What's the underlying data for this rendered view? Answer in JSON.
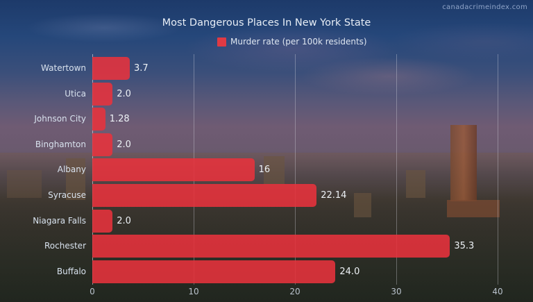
{
  "watermark": "canadacrimeindex.com",
  "colors": {
    "bar": "#e8323c",
    "legend_swatch": "#e03a44",
    "text": "#e8eef6"
  },
  "chart_data": {
    "type": "bar",
    "orientation": "horizontal",
    "title": "Most Dangerous Places In New York State",
    "legend": [
      "Murder rate (per 100k residents)"
    ],
    "legend_position": "top",
    "xlabel": "",
    "ylabel": "",
    "xlim": [
      0,
      40
    ],
    "xticks": [
      "0",
      "10",
      "20",
      "30",
      "40"
    ],
    "grid": true,
    "categories": [
      "Watertown",
      "Utica",
      "Johnson City",
      "Binghamton",
      "Albany",
      "Syracuse",
      "Niagara Falls",
      "Rochester",
      "Buffalo"
    ],
    "series": [
      {
        "name": "Murder rate (per 100k residents)",
        "values": [
          3.7,
          2.0,
          1.28,
          2.0,
          16,
          22.14,
          2.0,
          35.3,
          24.0
        ],
        "labels": [
          "3.7",
          "2.0",
          "1.28",
          "2.0",
          "16",
          "22.14",
          "2.0",
          "35.3",
          "24.0"
        ]
      }
    ]
  }
}
